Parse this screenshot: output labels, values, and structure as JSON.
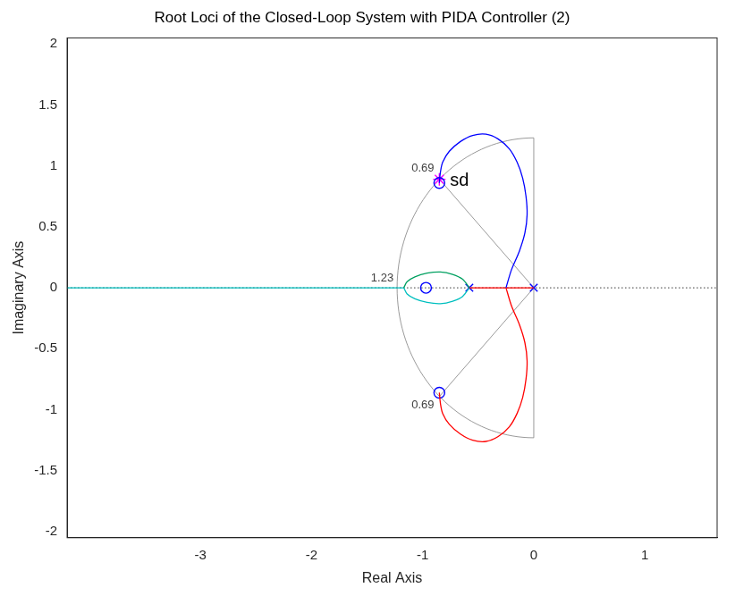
{
  "chart_data": {
    "type": "root_locus",
    "title": "Root Loci of the Closed-Loop System with PIDA Controller (2)",
    "x_label": "Real Axis",
    "y_label": "Imaginary Axis",
    "xlim": [
      -4.2,
      1.65
    ],
    "ylim": [
      -2.05,
      2.05
    ],
    "xticks": [
      -3,
      -2,
      -1,
      0,
      1
    ],
    "yticks": [
      -2,
      -1.5,
      -1,
      -0.5,
      0,
      0.5,
      1,
      1.5,
      2
    ],
    "grid": false,
    "series": [
      {
        "color": "#0000ff",
        "line_style": "solid",
        "x": [
          -0.25,
          -0.2,
          -0.13,
          -0.08,
          -0.06,
          -0.07,
          -0.1,
          -0.15,
          -0.22,
          -0.32,
          -0.43,
          -0.55,
          -0.66,
          -0.76,
          -0.82,
          -0.84,
          -0.85
        ],
        "y": [
          0,
          0.15,
          0.3,
          0.45,
          0.6,
          0.75,
          0.9,
          1.03,
          1.14,
          1.22,
          1.26,
          1.25,
          1.2,
          1.12,
          1.03,
          0.95,
          0.86
        ]
      },
      {
        "color": "#ff0000",
        "line_style": "solid",
        "x": [
          -0.25,
          -0.2,
          -0.13,
          -0.08,
          -0.06,
          -0.07,
          -0.1,
          -0.15,
          -0.22,
          -0.32,
          -0.43,
          -0.55,
          -0.66,
          -0.76,
          -0.82,
          -0.84,
          -0.85
        ],
        "y": [
          0,
          -0.15,
          -0.3,
          -0.45,
          -0.6,
          -0.75,
          -0.9,
          -1.03,
          -1.14,
          -1.22,
          -1.26,
          -1.25,
          -1.2,
          -1.12,
          -1.03,
          -0.95,
          -0.86
        ]
      },
      {
        "color": "#ff0000",
        "line_style": "solid",
        "x": [
          -0.58,
          0
        ],
        "y": [
          0,
          0
        ]
      },
      {
        "color": "#00a060",
        "line_style": "solid",
        "x": [
          -0.58,
          -0.64,
          -0.73,
          -0.84,
          -0.96,
          -1.07,
          -1.14,
          -1.17
        ],
        "y": [
          0,
          0.07,
          0.11,
          0.13,
          0.12,
          0.09,
          0.05,
          0
        ]
      },
      {
        "color": "#00bfbf",
        "line_style": "solid",
        "x": [
          -0.58,
          -0.64,
          -0.73,
          -0.84,
          -0.96,
          -1.07,
          -1.14,
          -1.17
        ],
        "y": [
          0,
          -0.07,
          -0.11,
          -0.13,
          -0.12,
          -0.09,
          -0.05,
          0
        ]
      },
      {
        "color": "#00bfbf",
        "line_style": "solid",
        "x": [
          -1.17,
          -4.2
        ],
        "y": [
          0,
          0
        ]
      }
    ],
    "poles": {
      "marker": "x",
      "color": "#0000ff",
      "x": [
        0,
        -0.58
      ],
      "y": [
        0,
        0
      ]
    },
    "zeros": {
      "marker": "circle",
      "color": "#0000ff",
      "x": [
        -0.97,
        -0.85,
        -0.85
      ],
      "y": [
        0,
        0.86,
        -0.86
      ]
    },
    "desired_pole": {
      "label": "sd",
      "marker": "star",
      "color": "#ff00ff",
      "x": -0.85,
      "y": 0.89
    },
    "damping_ratio": 0.69,
    "natural_frequency": 1.23
  }
}
